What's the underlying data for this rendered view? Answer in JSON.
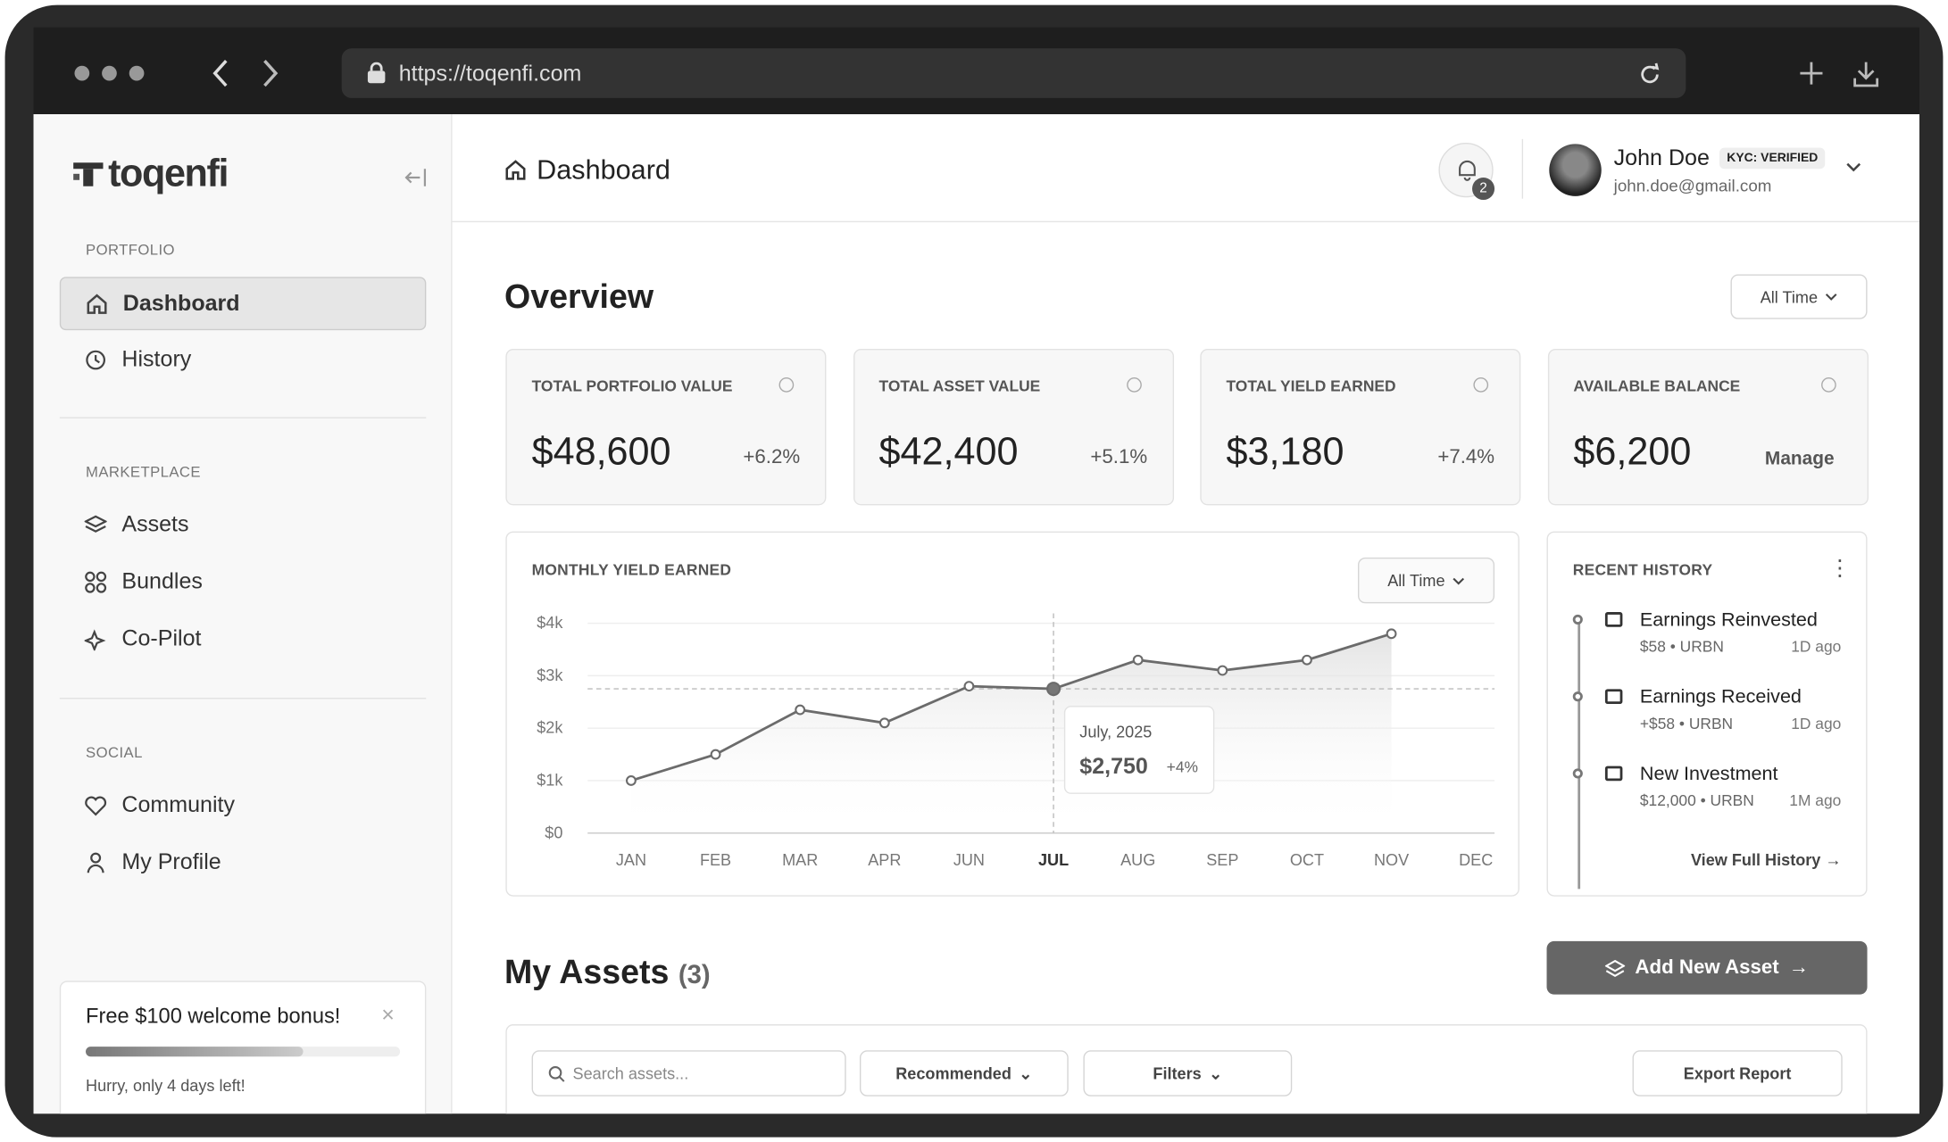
{
  "browser": {
    "url": "https://toqenfi.com"
  },
  "sidebar": {
    "logo": "toqenfi",
    "sections": [
      {
        "title": "PORTFOLIO",
        "items": [
          "Dashboard",
          "History"
        ]
      },
      {
        "title": "MARKETPLACE",
        "items": [
          "Assets",
          "Bundles",
          "Co-Pilot"
        ]
      },
      {
        "title": "SOCIAL",
        "items": [
          "Community",
          "My Profile"
        ]
      }
    ],
    "promo": {
      "title": "Free $100 welcome bonus!",
      "note": "Hurry, only 4 days left!"
    }
  },
  "header": {
    "title": "Dashboard",
    "notifications": "2",
    "user": {
      "name": "John Doe",
      "badge": "KYC: VERIFIED",
      "email": "john.doe@gmail.com"
    }
  },
  "overview": {
    "title": "Overview",
    "filter": "All Time",
    "cards": [
      {
        "label": "TOTAL PORTFOLIO VALUE",
        "value": "$48,600",
        "change": "+6.2%"
      },
      {
        "label": "TOTAL ASSET VALUE",
        "value": "$42,400",
        "change": "+5.1%"
      },
      {
        "label": "TOTAL YIELD EARNED",
        "value": "$3,180",
        "change": "+7.4%"
      },
      {
        "label": "AVAILABLE BALANCE",
        "value": "$6,200",
        "action": "Manage"
      }
    ]
  },
  "chart_data": {
    "type": "line",
    "title": "MONTHLY YIELD EARNED",
    "filter": "All Time",
    "categories": [
      "JAN",
      "FEB",
      "MAR",
      "APR",
      "JUN",
      "JUL",
      "AUG",
      "SEP",
      "OCT",
      "NOV",
      "DEC"
    ],
    "values": [
      1000,
      1500,
      2350,
      2100,
      2800,
      2750,
      3300,
      3100,
      3300,
      3800,
      null
    ],
    "color": "#6b6b6b",
    "ylim": [
      0,
      4000
    ],
    "yticks": [
      {
        "value": 0,
        "label": "$0"
      },
      {
        "value": 1000,
        "label": "$1k"
      },
      {
        "value": 2000,
        "label": "$2k"
      },
      {
        "value": 3000,
        "label": "$3k"
      },
      {
        "value": 4000,
        "label": "$4k"
      }
    ],
    "grid": true,
    "tooltip": {
      "title": "July, 2025",
      "value": "$2,750",
      "change": "+4%"
    }
  },
  "recent_history": {
    "title": "RECENT HISTORY",
    "items": [
      {
        "title": "Earnings Reinvested",
        "meta": "$58 • URBN",
        "time": "1D ago"
      },
      {
        "title": "Earnings Received",
        "meta": "+$58 • URBN",
        "time": "1D ago"
      },
      {
        "title": "New Investment",
        "meta": "$12,000 • URBN",
        "time": "1M ago"
      }
    ],
    "link": "View Full History"
  },
  "my_assets": {
    "title": "My Assets",
    "count": "(3)",
    "add_button": "Add New Asset",
    "search_placeholder": "Search assets...",
    "sort": "Recommended",
    "filters": "Filters",
    "export": "Export Report"
  }
}
